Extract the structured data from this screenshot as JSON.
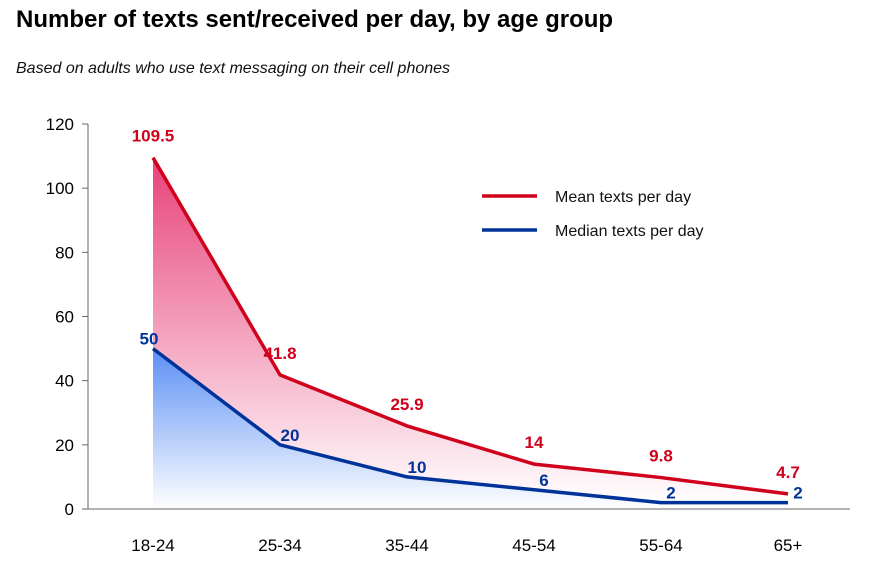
{
  "chart_data": {
    "type": "area",
    "title": "Number of texts sent/received per day, by age group",
    "subtitle": "Based on adults who use text messaging on their cell phones",
    "xlabel": "",
    "ylabel": "",
    "categories": [
      "18-24",
      "25-34",
      "35-44",
      "45-54",
      "55-64",
      "65+"
    ],
    "ylim": [
      0,
      120
    ],
    "yticks": [
      0,
      20,
      40,
      60,
      80,
      100,
      120
    ],
    "grid": false,
    "legend_position": "top-right",
    "series": [
      {
        "name": "Mean texts per day",
        "values": [
          109.5,
          41.8,
          25.9,
          14,
          9.8,
          4.7
        ],
        "labels": [
          "109.5",
          "41.8",
          "25.9",
          "14",
          "9.8",
          "4.7"
        ],
        "color": "#d0021b",
        "fill_top": "#e8427a",
        "fill_bottom": "#ffffff"
      },
      {
        "name": "Median texts per day",
        "values": [
          50,
          20,
          10,
          6,
          2,
          2
        ],
        "labels": [
          "50",
          "20",
          "10",
          "6",
          "2",
          "2"
        ],
        "color": "#003399",
        "fill_top": "#5b8ff5",
        "fill_bottom": "#ffffff"
      }
    ]
  }
}
